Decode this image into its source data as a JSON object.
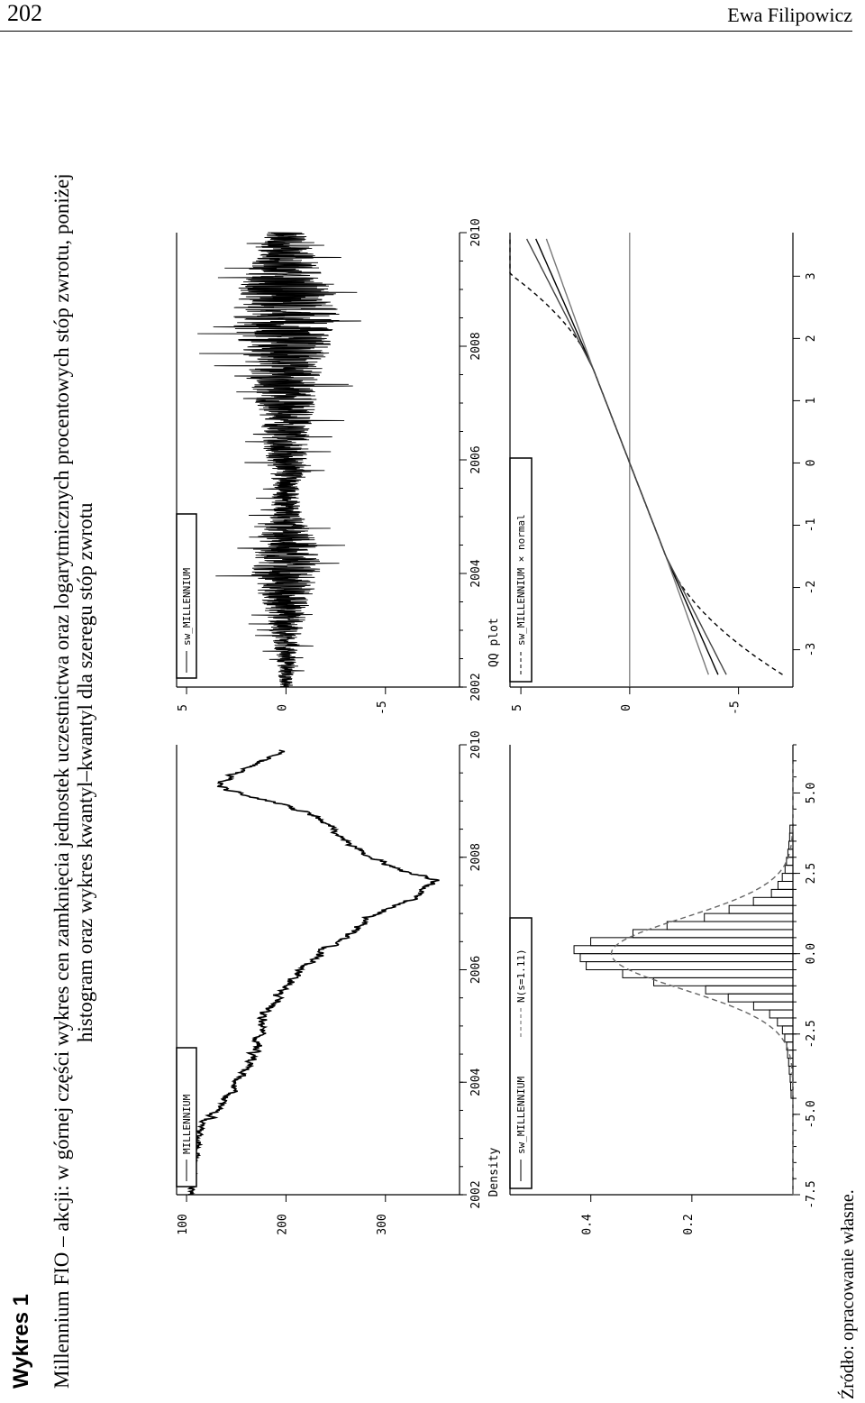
{
  "header": {
    "page_number": "202",
    "author": "Ewa Filipowicz"
  },
  "figure": {
    "label": "Wykres 1",
    "caption_line1": "Millennium FIO – akcji: w górnej części wykres cen zamknięcia jednostek uczestnictwa oraz logarytmicznych procentowych stóp zwrotu, poniżej",
    "caption_line2": "histogram oraz wykres kwantyl–kwantyl dla szeregu stóp zwrotu",
    "source": "Źródło: opracowanie własne."
  },
  "chart_data": [
    {
      "type": "line",
      "panel": "price",
      "legend": [
        "MILLENNIUM"
      ],
      "x_ticks": [
        "2002",
        "2004",
        "2006",
        "2008",
        "2010"
      ],
      "y_ticks": [
        "100",
        "200",
        "300"
      ],
      "x_range": [
        2002,
        2010
      ],
      "ylim": [
        90,
        360
      ],
      "series": [
        {
          "name": "MILLENNIUM",
          "x": [
            2002.0,
            2002.5,
            2003.0,
            2003.3,
            2003.6,
            2004.0,
            2004.3,
            2004.6,
            2005.0,
            2005.3,
            2005.6,
            2006.0,
            2006.3,
            2006.6,
            2007.0,
            2007.3,
            2007.6,
            2007.8,
            2008.0,
            2008.3,
            2008.6,
            2008.8,
            2009.0,
            2009.15,
            2009.3,
            2009.5,
            2009.7,
            2009.9
          ],
          "y": [
            103,
            105,
            112,
            120,
            135,
            150,
            165,
            170,
            175,
            180,
            195,
            215,
            235,
            260,
            290,
            330,
            350,
            310,
            285,
            260,
            240,
            220,
            185,
            150,
            130,
            150,
            175,
            195
          ]
        }
      ]
    },
    {
      "type": "line",
      "panel": "returns",
      "legend": [
        "sw_MILLENNIUM"
      ],
      "x_ticks": [
        "2002",
        "2004",
        "2006",
        "2008",
        "2010"
      ],
      "y_ticks": [
        "-5",
        "0",
        "5"
      ],
      "x_range": [
        2002,
        2010
      ],
      "ylim": [
        -8,
        5.5
      ],
      "amplitude_profile": {
        "x": [
          2002.0,
          2002.5,
          2003.0,
          2003.5,
          2004.0,
          2004.5,
          2005.0,
          2005.5,
          2006.0,
          2006.5,
          2007.0,
          2007.5,
          2008.0,
          2008.5,
          2009.0,
          2009.5,
          2010.0
        ],
        "amplitude": [
          0.6,
          0.9,
          1.5,
          2.2,
          3.2,
          3.0,
          1.6,
          1.2,
          2.0,
          2.2,
          2.8,
          3.4,
          4.2,
          5.0,
          4.5,
          3.0,
          1.8
        ]
      }
    },
    {
      "type": "bar",
      "panel": "histogram",
      "ylabel": "Density",
      "legend": [
        "sw_MILLENNIUM",
        "N(s=1.11)"
      ],
      "x_ticks": [
        "-7.5",
        "-5.0",
        "-2.5",
        "0.0",
        "2.5",
        "5.0"
      ],
      "y_ticks": [
        "0.2",
        "0.4"
      ],
      "xlim": [
        -7.5,
        6.5
      ],
      "ylim": [
        0,
        0.56
      ],
      "bin_width": 0.25,
      "normal_sd": 1.11
    },
    {
      "type": "scatter",
      "panel": "qq",
      "title": "QQ plot",
      "legend": [
        "sw_MILLENNIUM × normal"
      ],
      "x_ticks": [
        "-3",
        "-2",
        "-1",
        "0",
        "1",
        "2",
        "3"
      ],
      "y_ticks": [
        "-5",
        "0",
        "5"
      ],
      "xlim": [
        -3.6,
        3.7
      ],
      "ylim": [
        -7.5,
        5.5
      ]
    }
  ]
}
